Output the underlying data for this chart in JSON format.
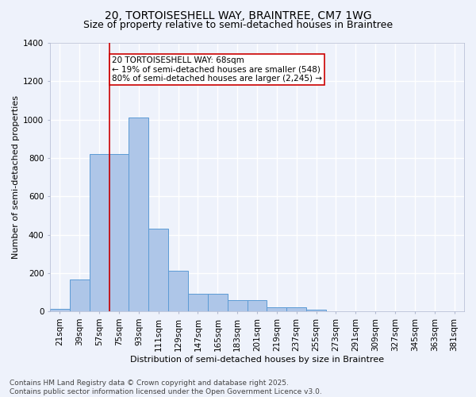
{
  "title": "20, TORTOISESHELL WAY, BRAINTREE, CM7 1WG",
  "subtitle": "Size of property relative to semi-detached houses in Braintree",
  "xlabel": "Distribution of semi-detached houses by size in Braintree",
  "ylabel": "Number of semi-detached properties",
  "bins": [
    "21sqm",
    "39sqm",
    "57sqm",
    "75sqm",
    "93sqm",
    "111sqm",
    "129sqm",
    "147sqm",
    "165sqm",
    "183sqm",
    "201sqm",
    "219sqm",
    "237sqm",
    "255sqm",
    "273sqm",
    "291sqm",
    "309sqm",
    "327sqm",
    "345sqm",
    "363sqm",
    "381sqm"
  ],
  "values": [
    15,
    165,
    820,
    820,
    1010,
    430,
    210,
    90,
    90,
    60,
    60,
    20,
    20,
    10,
    0,
    0,
    0,
    0,
    0,
    0,
    0
  ],
  "bar_color": "#aec6e8",
  "bar_edge_color": "#5b9bd5",
  "vline_x_idx": 2.5,
  "vline_color": "#cc0000",
  "annotation_text": "20 TORTOISESHELL WAY: 68sqm\n← 19% of semi-detached houses are smaller (548)\n80% of semi-detached houses are larger (2,245) →",
  "annotation_box_color": "#cc0000",
  "background_color": "#eef2fb",
  "grid_color": "#ffffff",
  "ylim": [
    0,
    1400
  ],
  "yticks": [
    0,
    200,
    400,
    600,
    800,
    1000,
    1200,
    1400
  ],
  "footer_line1": "Contains HM Land Registry data © Crown copyright and database right 2025.",
  "footer_line2": "Contains public sector information licensed under the Open Government Licence v3.0.",
  "title_fontsize": 10,
  "subtitle_fontsize": 9,
  "axis_label_fontsize": 8,
  "tick_fontsize": 7.5,
  "annotation_fontsize": 7.5,
  "footer_fontsize": 6.5
}
